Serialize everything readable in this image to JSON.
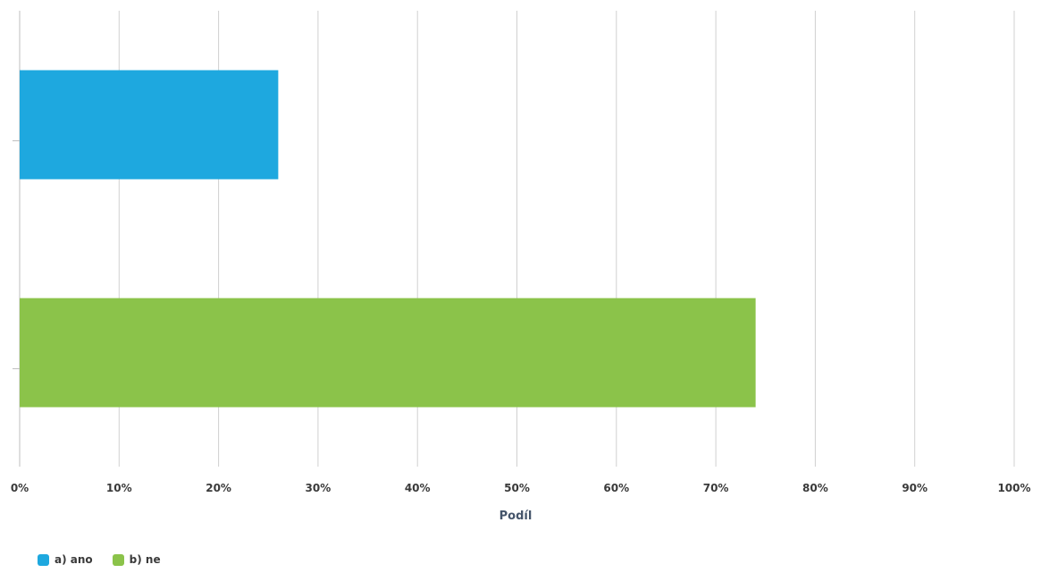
{
  "chart_data": {
    "type": "bar",
    "orientation": "horizontal",
    "stacked": false,
    "categories": [
      "a) ano",
      "b) ne"
    ],
    "values": [
      0.26,
      0.74
    ],
    "colors": [
      "#1ea8df",
      "#8bc34a"
    ],
    "xlabel": "Podíl",
    "ylabel": "",
    "xlim": [
      0,
      1
    ],
    "xticks": [
      "0%",
      "10%",
      "20%",
      "30%",
      "40%",
      "50%",
      "60%",
      "70%",
      "80%",
      "90%",
      "100%"
    ],
    "grid": "vertical",
    "legend": {
      "position": "bottom-left",
      "entries": [
        {
          "label": "a) ano",
          "color": "#1ea8df"
        },
        {
          "label": "b) ne",
          "color": "#8bc34a"
        }
      ]
    }
  }
}
